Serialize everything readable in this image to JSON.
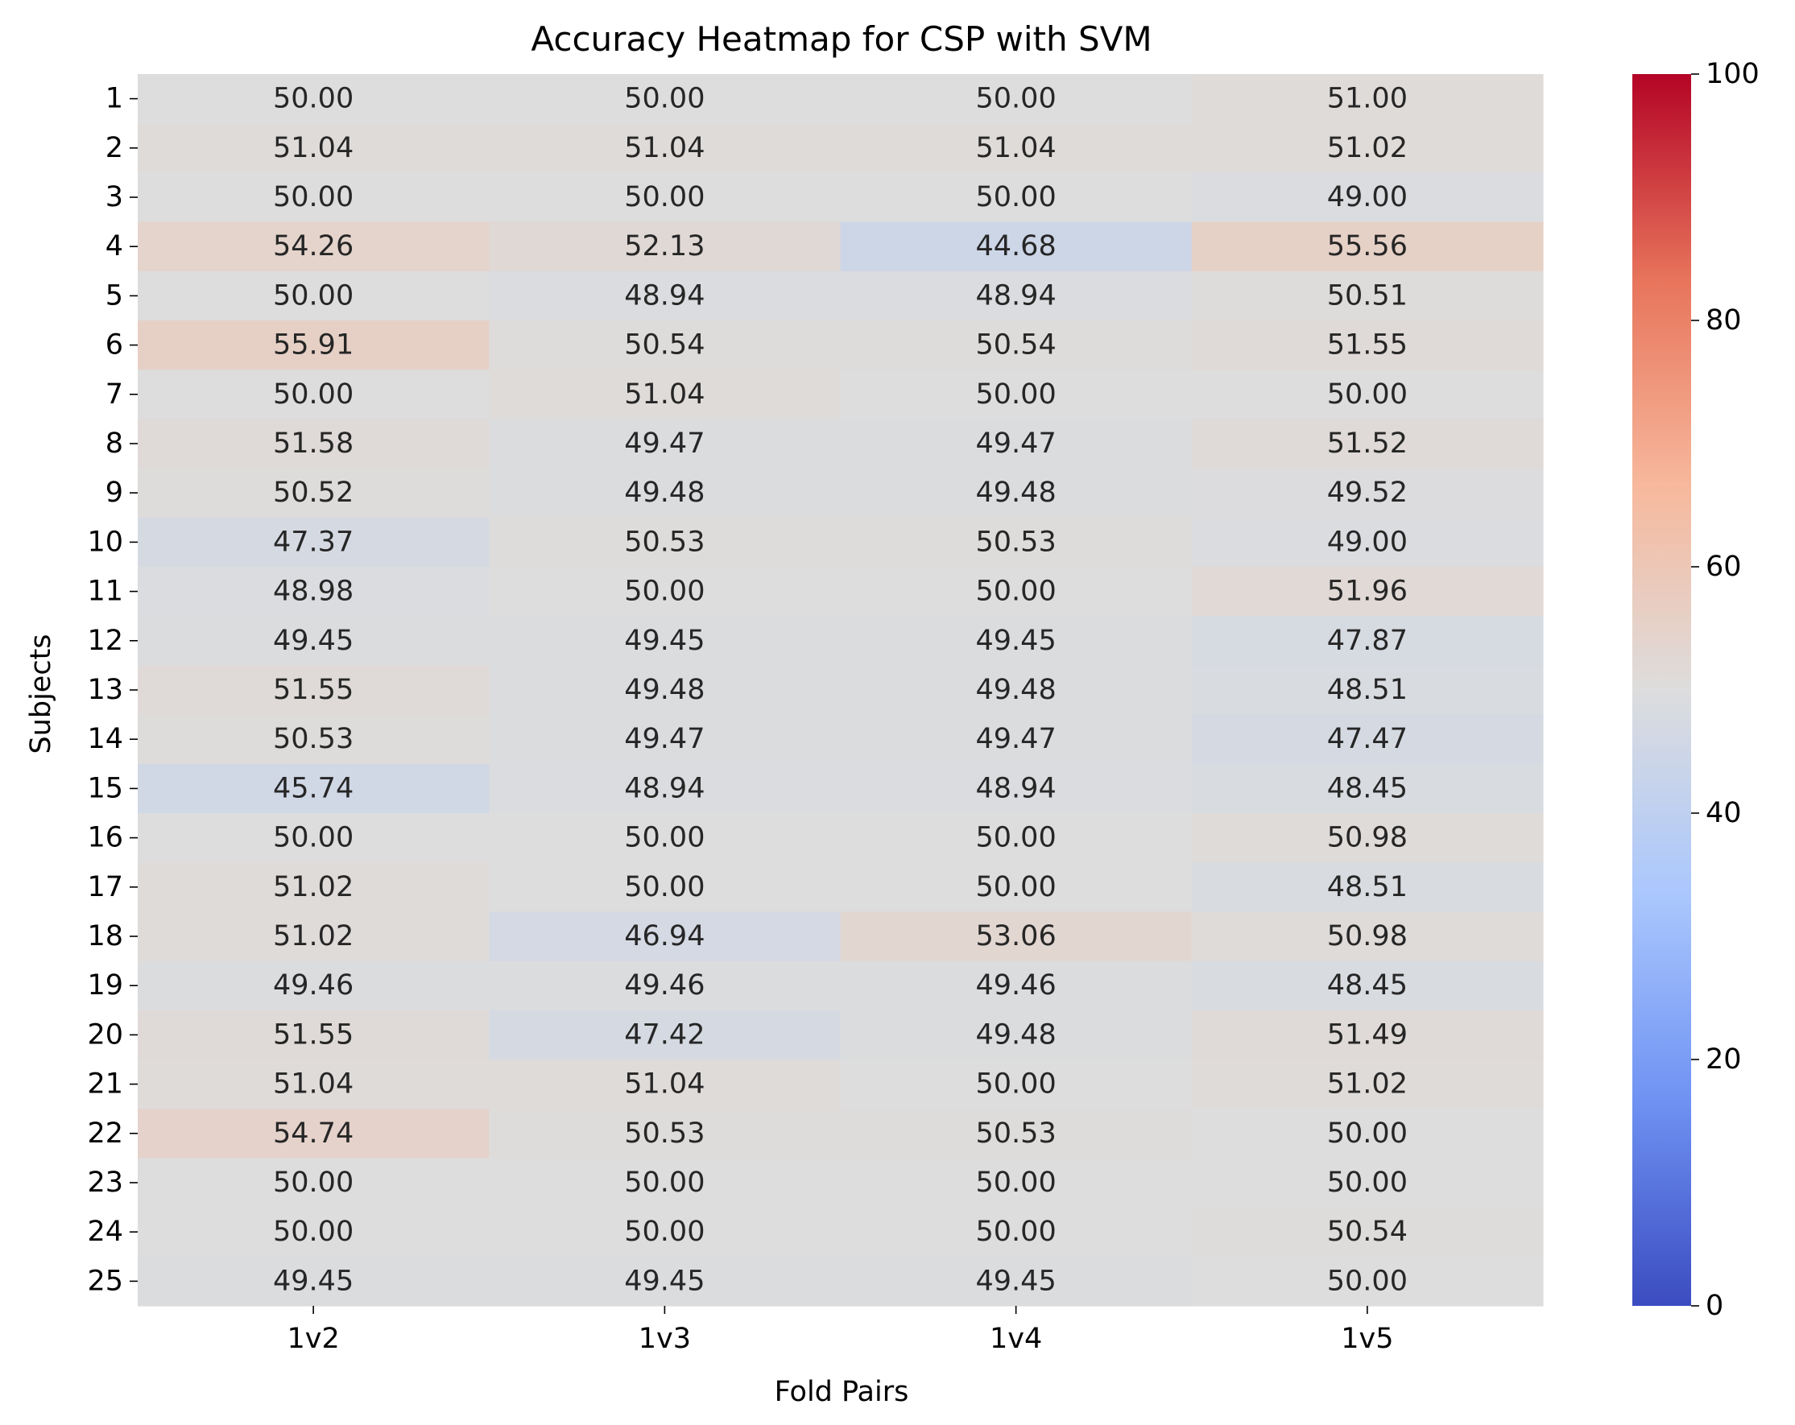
{
  "chart_data": {
    "type": "heatmap",
    "title": "Accuracy Heatmap for CSP with SVM",
    "xlabel": "Fold Pairs",
    "ylabel": "Subjects",
    "columns": [
      "1v2",
      "1v3",
      "1v4",
      "1v5"
    ],
    "rows": [
      "1",
      "2",
      "3",
      "4",
      "5",
      "6",
      "7",
      "8",
      "9",
      "10",
      "11",
      "12",
      "13",
      "14",
      "15",
      "16",
      "17",
      "18",
      "19",
      "20",
      "21",
      "22",
      "23",
      "24",
      "25"
    ],
    "values": [
      [
        50.0,
        50.0,
        50.0,
        51.0
      ],
      [
        51.04,
        51.04,
        51.04,
        51.02
      ],
      [
        50.0,
        50.0,
        50.0,
        49.0
      ],
      [
        54.26,
        52.13,
        44.68,
        55.56
      ],
      [
        50.0,
        48.94,
        48.94,
        50.51
      ],
      [
        55.91,
        50.54,
        50.54,
        51.55
      ],
      [
        50.0,
        51.04,
        50.0,
        50.0
      ],
      [
        51.58,
        49.47,
        49.47,
        51.52
      ],
      [
        50.52,
        49.48,
        49.48,
        49.52
      ],
      [
        47.37,
        50.53,
        50.53,
        49.0
      ],
      [
        48.98,
        50.0,
        50.0,
        51.96
      ],
      [
        49.45,
        49.45,
        49.45,
        47.87
      ],
      [
        51.55,
        49.48,
        49.48,
        48.51
      ],
      [
        50.53,
        49.47,
        49.47,
        47.47
      ],
      [
        45.74,
        48.94,
        48.94,
        48.45
      ],
      [
        50.0,
        50.0,
        50.0,
        50.98
      ],
      [
        51.02,
        50.0,
        50.0,
        48.51
      ],
      [
        51.02,
        46.94,
        53.06,
        50.98
      ],
      [
        49.46,
        49.46,
        49.46,
        48.45
      ],
      [
        51.55,
        47.42,
        49.48,
        51.49
      ],
      [
        51.04,
        51.04,
        50.0,
        51.02
      ],
      [
        54.74,
        50.53,
        50.53,
        50.0
      ],
      [
        50.0,
        50.0,
        50.0,
        50.0
      ],
      [
        50.0,
        50.0,
        50.0,
        50.54
      ],
      [
        49.45,
        49.45,
        49.45,
        50.0
      ]
    ],
    "value_format_decimals": 2,
    "colormap": "coolwarm",
    "colormap_stops": [
      "#3b4cc0",
      "#6f92f3",
      "#aac7fd",
      "#dddddd",
      "#f7b89c",
      "#e7745b",
      "#b40426"
    ],
    "vmin": 0,
    "vmax": 100,
    "colorbar_ticks": [
      0,
      20,
      40,
      60,
      80,
      100
    ]
  }
}
